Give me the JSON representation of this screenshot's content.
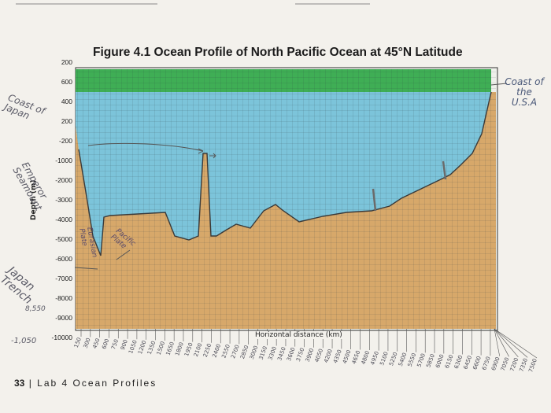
{
  "figure": {
    "title": "Figure 4.1 Ocean Profile of North Pacific Ocean at 45°N Latitude",
    "y_axis_label": "Depth (m)",
    "x_axis_label": "Horizontal distance (km)",
    "depth_ticks": [
      "200",
      "600",
      "400",
      "200",
      "-200",
      "-1000",
      "-2000",
      "-3000",
      "-4000",
      "-5000",
      "-6000",
      "-7000",
      "-8000",
      "-9000",
      "-10000"
    ],
    "distance_ticks": [
      "150",
      "300",
      "450",
      "600",
      "750",
      "900",
      "1050",
      "1200",
      "1350",
      "1500",
      "1650",
      "1800",
      "1950",
      "2100",
      "2250",
      "2400",
      "2550",
      "2700",
      "2850",
      "3000",
      "3150",
      "3300",
      "3450",
      "3600",
      "3750",
      "3900",
      "4050",
      "4200",
      "4350",
      "4500",
      "4650",
      "4800",
      "4950",
      "5100",
      "5250",
      "5400",
      "5550",
      "5700",
      "5850",
      "6000",
      "6150",
      "6300",
      "6450",
      "6600",
      "6750",
      "6900",
      "7050",
      "7200",
      "7350",
      "7500"
    ]
  },
  "annotations": {
    "left_coast": "Coast of Japan",
    "right_coast": "Coast of the U.S.A",
    "seamount": "Emperor Seamount",
    "trench": "Japan Trench",
    "eurasian_plate": "Eurasian Plate",
    "pacific_plate": "Pacific Plate",
    "trench_depth": "8,550",
    "bottom_left_depth": "-1,050"
  },
  "footer": {
    "page": "33",
    "text": "Lab 4 Ocean Profiles"
  },
  "colors": {
    "ocean": "#7cc4da",
    "crust": "#d7a86a",
    "surface": "#3fae55",
    "grid": "#2d3b40"
  }
}
